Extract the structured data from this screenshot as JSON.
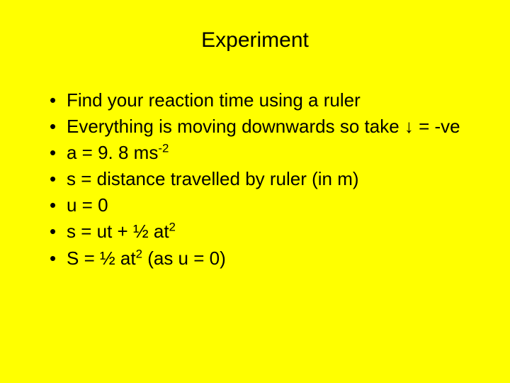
{
  "slide": {
    "background_color": "#ffff00",
    "text_color": "#000000",
    "font_family": "Comic Sans MS",
    "title": "Experiment",
    "title_fontsize": 30,
    "body_fontsize": 26,
    "bullets": [
      {
        "html": "Find your reaction time using a ruler"
      },
      {
        "html": "Everything is moving downwards so take ↓ = -ve"
      },
      {
        "html": "a = 9. 8 ms<sup>-2</sup>"
      },
      {
        "html": "s = distance travelled by ruler (in m)"
      },
      {
        "html": "u = 0"
      },
      {
        "html": "s = ut + ½ at<sup>2</sup>"
      },
      {
        "html": "S = ½ at<sup>2</sup> (as u = 0)"
      }
    ]
  }
}
